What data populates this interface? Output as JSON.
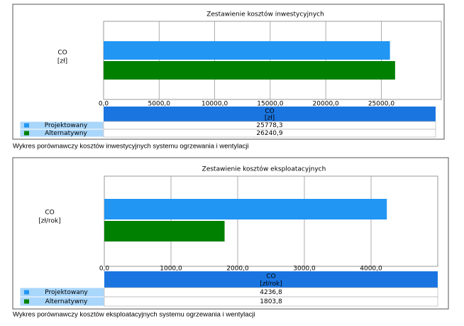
{
  "chart_data": [
    {
      "type": "bar",
      "orientation": "horizontal",
      "title": "Zestawienie kosztów inwestycyjnych",
      "categories": [
        "CO"
      ],
      "category_units": [
        "[zł]"
      ],
      "series": [
        {
          "name": "Projektowany",
          "color": "#2196f3",
          "values": [
            25778.3
          ],
          "value_labels": [
            "25778,3"
          ]
        },
        {
          "name": "Alternatywny",
          "color": "#008000",
          "values": [
            26240.9
          ],
          "value_labels": [
            "26240,9"
          ]
        }
      ],
      "xlim": [
        0,
        30400
      ],
      "xticks": [
        {
          "value": 0,
          "label": "0,0"
        },
        {
          "value": 5000,
          "label": "5000,0"
        },
        {
          "value": 10000,
          "label": "10000,0"
        },
        {
          "value": 15000,
          "label": "15000,0"
        },
        {
          "value": 20000,
          "label": "20000,0"
        },
        {
          "value": 25000,
          "label": "25000,0"
        }
      ],
      "grid": true,
      "caption": "Wykres porównawczy kosztów inwestycyjnych systemu ogrzewania i wentylacji"
    },
    {
      "type": "bar",
      "orientation": "horizontal",
      "title": "Zestawienie kosztów eksploatacyjnych",
      "categories": [
        "CO"
      ],
      "category_units": [
        "[zł/rok]"
      ],
      "series": [
        {
          "name": "Projektowany",
          "color": "#2196f3",
          "values": [
            4236.8
          ],
          "value_labels": [
            "4236,8"
          ]
        },
        {
          "name": "Alternatywny",
          "color": "#008000",
          "values": [
            1803.8
          ],
          "value_labels": [
            "1803,8"
          ]
        }
      ],
      "xlim": [
        0,
        5000
      ],
      "xticks": [
        {
          "value": 0,
          "label": "0,0"
        },
        {
          "value": 1000,
          "label": "1000,0"
        },
        {
          "value": 2000,
          "label": "2000,0"
        },
        {
          "value": 3000,
          "label": "3000,0"
        },
        {
          "value": 4000,
          "label": "4000,0"
        }
      ],
      "grid": true,
      "caption": "Wykres porównawczy kosztów eksploatacyjnych systemu ogrzewania i wentylacji"
    }
  ]
}
